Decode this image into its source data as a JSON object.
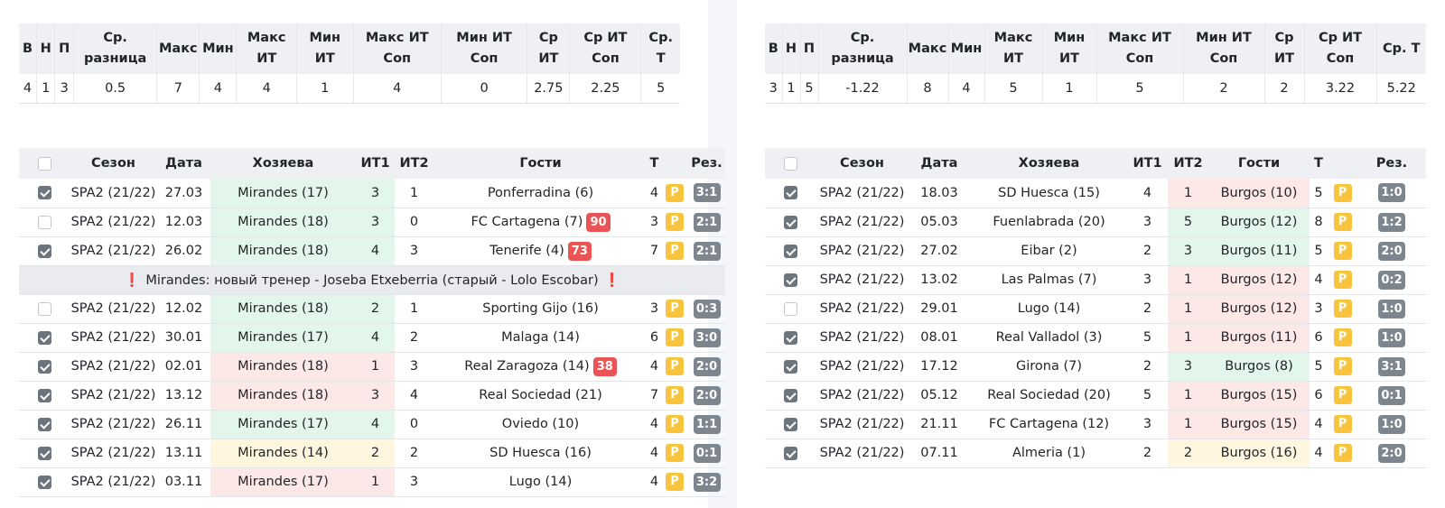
{
  "stats_headers": [
    "В",
    "Н",
    "П",
    "Ср. разница",
    "Макс",
    "Мин",
    "Макс ИТ",
    "Мин ИТ",
    "Макс ИТ Соп",
    "Мин ИТ Соп",
    "Ср ИТ",
    "Ср ИТ Соп",
    "Ср. Т"
  ],
  "match_headers": [
    "",
    "Сезон",
    "Дата",
    "Хозяева",
    "ИТ1",
    "ИТ2",
    "Гости",
    "Т",
    "",
    "Рез."
  ],
  "left": {
    "stats": [
      "4",
      "1",
      "3",
      "0.5",
      "7",
      "4",
      "4",
      "1",
      "4",
      "0",
      "2.75",
      "2.25",
      "5"
    ],
    "matches": [
      {
        "checked": true,
        "season": "SPA2 (21/22)",
        "date": "27.03",
        "home": "Mirandes (17)",
        "it1": "3",
        "it2": "1",
        "away": "Ponferradina (6)",
        "rank": "",
        "total": "4",
        "badge": "P",
        "result": "3:1",
        "home_color": "green"
      },
      {
        "checked": false,
        "season": "SPA2 (21/22)",
        "date": "12.03",
        "home": "Mirandes (18)",
        "it1": "3",
        "it2": "0",
        "away": "FC Cartagena (7)",
        "rank": "90",
        "total": "3",
        "badge": "P",
        "result": "2:1",
        "home_color": "green"
      },
      {
        "checked": true,
        "season": "SPA2 (21/22)",
        "date": "26.02",
        "home": "Mirandes (18)",
        "it1": "4",
        "it2": "3",
        "away": "Tenerife (4)",
        "rank": "73",
        "total": "7",
        "badge": "P",
        "result": "2:1",
        "home_color": "green"
      },
      {
        "note": "Mirandes: новый тренер - Joseba Etxeberria (старый - Lolo Escobar)",
        "note_icon": "❗"
      },
      {
        "checked": false,
        "season": "SPA2 (21/22)",
        "date": "12.02",
        "home": "Mirandes (18)",
        "it1": "2",
        "it2": "1",
        "away": "Sporting Gijo (16)",
        "rank": "",
        "total": "3",
        "badge": "P",
        "result": "0:3",
        "home_color": "green"
      },
      {
        "checked": true,
        "season": "SPA2 (21/22)",
        "date": "30.01",
        "home": "Mirandes (17)",
        "it1": "4",
        "it2": "2",
        "away": "Malaga (14)",
        "rank": "",
        "total": "6",
        "badge": "P",
        "result": "3:0",
        "home_color": "green"
      },
      {
        "checked": true,
        "season": "SPA2 (21/22)",
        "date": "02.01",
        "home": "Mirandes (18)",
        "it1": "1",
        "it2": "3",
        "away": "Real Zaragoza (14)",
        "rank": "38",
        "total": "4",
        "badge": "P",
        "result": "2:0",
        "home_color": "red"
      },
      {
        "checked": true,
        "season": "SPA2 (21/22)",
        "date": "13.12",
        "home": "Mirandes (18)",
        "it1": "3",
        "it2": "4",
        "away": "Real Sociedad (21)",
        "rank": "",
        "total": "7",
        "badge": "P",
        "result": "2:0",
        "home_color": "red"
      },
      {
        "checked": true,
        "season": "SPA2 (21/22)",
        "date": "26.11",
        "home": "Mirandes (17)",
        "it1": "4",
        "it2": "0",
        "away": "Oviedo (10)",
        "rank": "",
        "total": "4",
        "badge": "P",
        "result": "1:1",
        "home_color": "green"
      },
      {
        "checked": true,
        "season": "SPA2 (21/22)",
        "date": "13.11",
        "home": "Mirandes (14)",
        "it1": "2",
        "it2": "2",
        "away": "SD Huesca (16)",
        "rank": "",
        "total": "4",
        "badge": "P",
        "result": "0:1",
        "home_color": "yellow"
      },
      {
        "checked": true,
        "season": "SPA2 (21/22)",
        "date": "03.11",
        "home": "Mirandes (17)",
        "it1": "1",
        "it2": "3",
        "away": "Lugo (14)",
        "rank": "",
        "total": "4",
        "badge": "P",
        "result": "3:2",
        "home_color": "red"
      }
    ]
  },
  "right": {
    "stats": [
      "3",
      "1",
      "5",
      "-1.22",
      "8",
      "4",
      "5",
      "1",
      "5",
      "2",
      "2",
      "3.22",
      "5.22"
    ],
    "matches": [
      {
        "checked": true,
        "season": "SPA2 (21/22)",
        "date": "18.03",
        "home": "SD Huesca (15)",
        "it1": "4",
        "it2": "1",
        "away": "Burgos (10)",
        "rank": "",
        "total": "5",
        "badge": "P",
        "result": "1:0",
        "away_color": "red"
      },
      {
        "checked": true,
        "season": "SPA2 (21/22)",
        "date": "05.03",
        "home": "Fuenlabrada (20)",
        "it1": "3",
        "it2": "5",
        "away": "Burgos (12)",
        "rank": "",
        "total": "8",
        "badge": "P",
        "result": "1:2",
        "away_color": "green"
      },
      {
        "checked": true,
        "season": "SPA2 (21/22)",
        "date": "27.02",
        "home": "Eibar (2)",
        "it1": "2",
        "it2": "3",
        "away": "Burgos (11)",
        "rank": "",
        "total": "5",
        "badge": "P",
        "result": "2:0",
        "away_color": "green"
      },
      {
        "checked": true,
        "season": "SPA2 (21/22)",
        "date": "13.02",
        "home": "Las Palmas (7)",
        "it1": "3",
        "it2": "1",
        "away": "Burgos (12)",
        "rank": "",
        "total": "4",
        "badge": "P",
        "result": "0:2",
        "away_color": "red"
      },
      {
        "checked": false,
        "season": "SPA2 (21/22)",
        "date": "29.01",
        "home": "Lugo (14)",
        "it1": "2",
        "it2": "1",
        "away": "Burgos (12)",
        "rank": "",
        "total": "3",
        "badge": "P",
        "result": "1:0",
        "away_color": "red"
      },
      {
        "checked": true,
        "season": "SPA2 (21/22)",
        "date": "08.01",
        "home": "Real Valladol (3)",
        "it1": "5",
        "it2": "1",
        "away": "Burgos (11)",
        "rank": "",
        "total": "6",
        "badge": "P",
        "result": "1:0",
        "away_color": "red"
      },
      {
        "checked": true,
        "season": "SPA2 (21/22)",
        "date": "17.12",
        "home": "Girona (7)",
        "it1": "2",
        "it2": "3",
        "away": "Burgos (8)",
        "rank": "",
        "total": "5",
        "badge": "P",
        "result": "3:1",
        "away_color": "green"
      },
      {
        "checked": true,
        "season": "SPA2 (21/22)",
        "date": "05.12",
        "home": "Real Sociedad (20)",
        "it1": "5",
        "it2": "1",
        "away": "Burgos (15)",
        "rank": "",
        "total": "6",
        "badge": "P",
        "result": "0:1",
        "away_color": "red"
      },
      {
        "checked": true,
        "season": "SPA2 (21/22)",
        "date": "21.11",
        "home": "FC Cartagena (12)",
        "it1": "3",
        "it2": "1",
        "away": "Burgos (15)",
        "rank": "",
        "total": "4",
        "badge": "P",
        "result": "1:0",
        "away_color": "red"
      },
      {
        "checked": true,
        "season": "SPA2 (21/22)",
        "date": "07.11",
        "home": "Almeria (1)",
        "it1": "2",
        "it2": "2",
        "away": "Burgos (16)",
        "rank": "",
        "total": "4",
        "badge": "P",
        "result": "2:0",
        "away_color": "yellow"
      }
    ]
  }
}
